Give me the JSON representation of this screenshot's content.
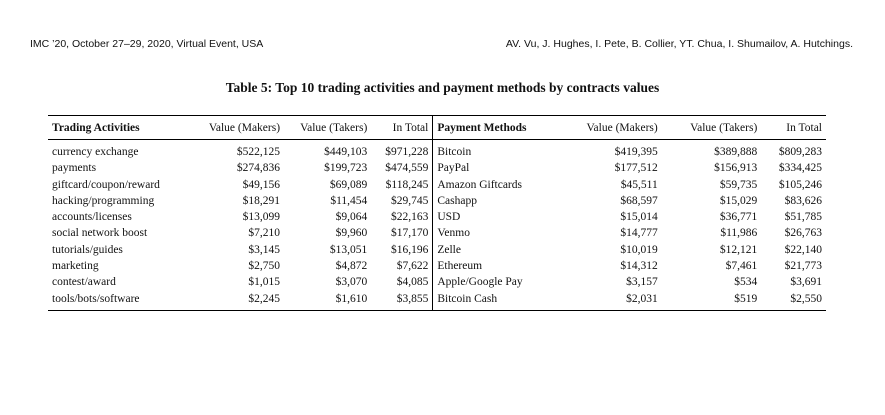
{
  "header": {
    "left": "IMC ’20, October 27–29, 2020, Virtual Event, USA",
    "right": "AV. Vu, J. Hughes, I. Pete, B. Collier, YT. Chua, I. Shumailov, A. Hutchings."
  },
  "caption": "Table 5: Top 10 trading activities and payment methods by contracts values",
  "table": {
    "headers": [
      "Trading Activities",
      "Value (Makers)",
      "Value (Takers)",
      "In Total",
      "Payment Methods",
      "Value (Makers)",
      "Value (Takers)",
      "In Total"
    ],
    "rows": [
      [
        "currency exchange",
        "$522,125",
        "$449,103",
        "$971,228",
        "Bitcoin",
        "$419,395",
        "$389,888",
        "$809,283"
      ],
      [
        "payments",
        "$274,836",
        "$199,723",
        "$474,559",
        "PayPal",
        "$177,512",
        "$156,913",
        "$334,425"
      ],
      [
        "giftcard/coupon/reward",
        "$49,156",
        "$69,089",
        "$118,245",
        "Amazon Giftcards",
        "$45,511",
        "$59,735",
        "$105,246"
      ],
      [
        "hacking/programming",
        "$18,291",
        "$11,454",
        "$29,745",
        "Cashapp",
        "$68,597",
        "$15,029",
        "$83,626"
      ],
      [
        "accounts/licenses",
        "$13,099",
        "$9,064",
        "$22,163",
        "USD",
        "$15,014",
        "$36,771",
        "$51,785"
      ],
      [
        "social network boost",
        "$7,210",
        "$9,960",
        "$17,170",
        "Venmo",
        "$14,777",
        "$11,986",
        "$26,763"
      ],
      [
        "tutorials/guides",
        "$3,145",
        "$13,051",
        "$16,196",
        "Zelle",
        "$10,019",
        "$12,121",
        "$22,140"
      ],
      [
        "marketing",
        "$2,750",
        "$4,872",
        "$7,622",
        "Ethereum",
        "$14,312",
        "$7,461",
        "$21,773"
      ],
      [
        "contest/award",
        "$1,015",
        "$3,070",
        "$4,085",
        "Apple/Google Pay",
        "$3,157",
        "$534",
        "$3,691"
      ],
      [
        "tools/bots/software",
        "$2,245",
        "$1,610",
        "$3,855",
        "Bitcoin Cash",
        "$2,031",
        "$519",
        "$2,550"
      ]
    ]
  }
}
